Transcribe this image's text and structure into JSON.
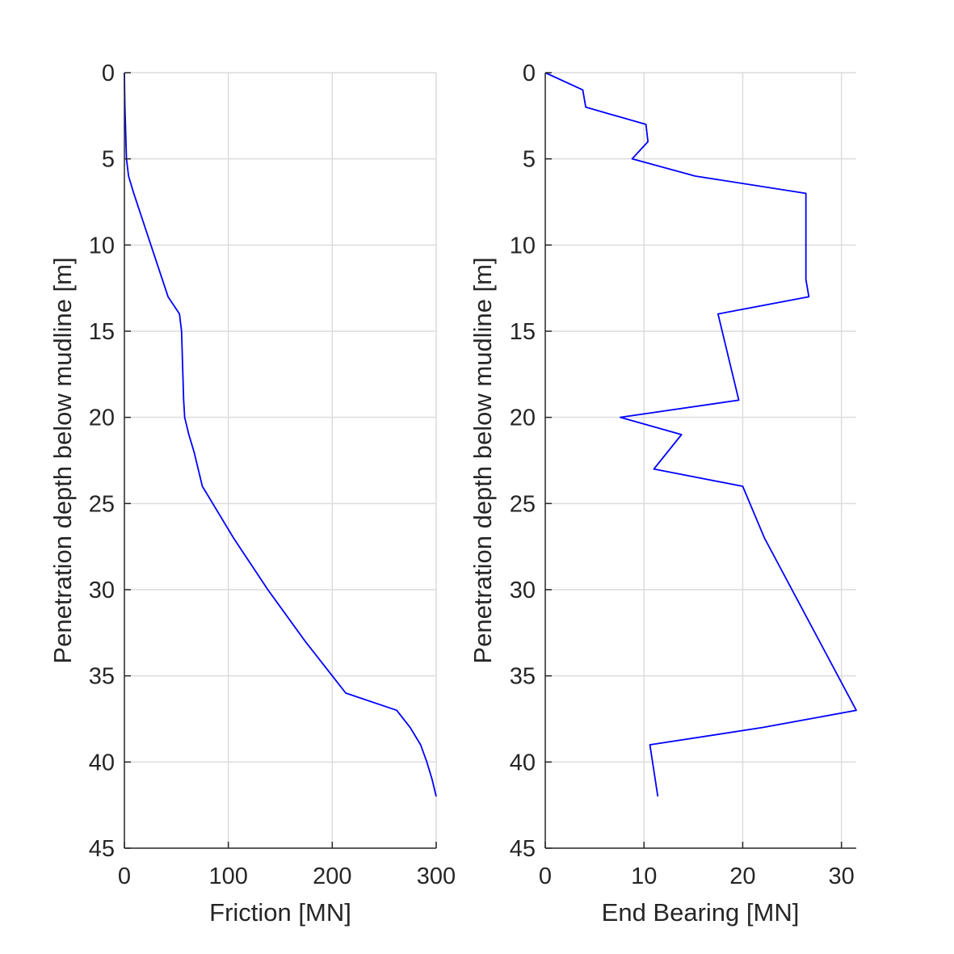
{
  "chart_data": [
    {
      "type": "line",
      "xlabel": "Friction [MN]",
      "ylabel": "Penetration depth below mudline [m]",
      "xlim": [
        0,
        300
      ],
      "ylim": [
        0,
        45
      ],
      "y_reversed": true,
      "x_ticks": [
        0,
        100,
        200,
        300
      ],
      "y_ticks": [
        0,
        5,
        10,
        15,
        20,
        25,
        30,
        35,
        40,
        45
      ],
      "grid": true,
      "series": [
        {
          "color": "#0000ff",
          "points": [
            [
              0,
              0
            ],
            [
              0.2,
              1
            ],
            [
              0.5,
              2
            ],
            [
              1,
              3
            ],
            [
              1.5,
              4
            ],
            [
              2,
              5
            ],
            [
              4,
              6
            ],
            [
              9,
              7
            ],
            [
              20,
              9
            ],
            [
              31,
              11
            ],
            [
              42,
              13
            ],
            [
              53,
              14
            ],
            [
              55,
              15
            ],
            [
              56,
              17
            ],
            [
              57,
              19
            ],
            [
              58,
              20
            ],
            [
              62,
              21
            ],
            [
              67,
              22
            ],
            [
              71,
              23
            ],
            [
              75,
              24
            ],
            [
              85,
              25
            ],
            [
              95,
              26
            ],
            [
              105,
              27
            ],
            [
              116,
              28
            ],
            [
              127,
              29
            ],
            [
              138,
              30
            ],
            [
              150,
              31
            ],
            [
              162,
              32
            ],
            [
              174,
              33
            ],
            [
              187,
              34
            ],
            [
              200,
              35
            ],
            [
              213,
              36
            ],
            [
              262,
              37
            ],
            [
              275,
              38
            ],
            [
              285,
              39
            ],
            [
              291,
              40
            ],
            [
              296,
              41
            ],
            [
              300,
              42
            ]
          ]
        }
      ]
    },
    {
      "type": "line",
      "xlabel": "End Bearing [MN]",
      "ylabel": "Penetration depth below mudline [m]",
      "xlim": [
        0,
        31.5
      ],
      "ylim": [
        0,
        45
      ],
      "y_reversed": true,
      "x_ticks": [
        0,
        10,
        20,
        30
      ],
      "y_ticks": [
        0,
        5,
        10,
        15,
        20,
        25,
        30,
        35,
        40,
        45
      ],
      "grid": true,
      "series": [
        {
          "color": "#0000ff",
          "points": [
            [
              0,
              0
            ],
            [
              3.8,
              1
            ],
            [
              4.1,
              2
            ],
            [
              10.2,
              3
            ],
            [
              10.4,
              4
            ],
            [
              8.8,
              5
            ],
            [
              15.2,
              6
            ],
            [
              26.4,
              7
            ],
            [
              26.4,
              12
            ],
            [
              26.7,
              13
            ],
            [
              17.5,
              14
            ],
            [
              19.6,
              19
            ],
            [
              7.6,
              20
            ],
            [
              13.8,
              21
            ],
            [
              11.0,
              23
            ],
            [
              20.0,
              24
            ],
            [
              22.2,
              27
            ],
            [
              31.5,
              37
            ],
            [
              22.0,
              38
            ],
            [
              10.6,
              39
            ],
            [
              11.4,
              42
            ]
          ]
        }
      ]
    }
  ]
}
